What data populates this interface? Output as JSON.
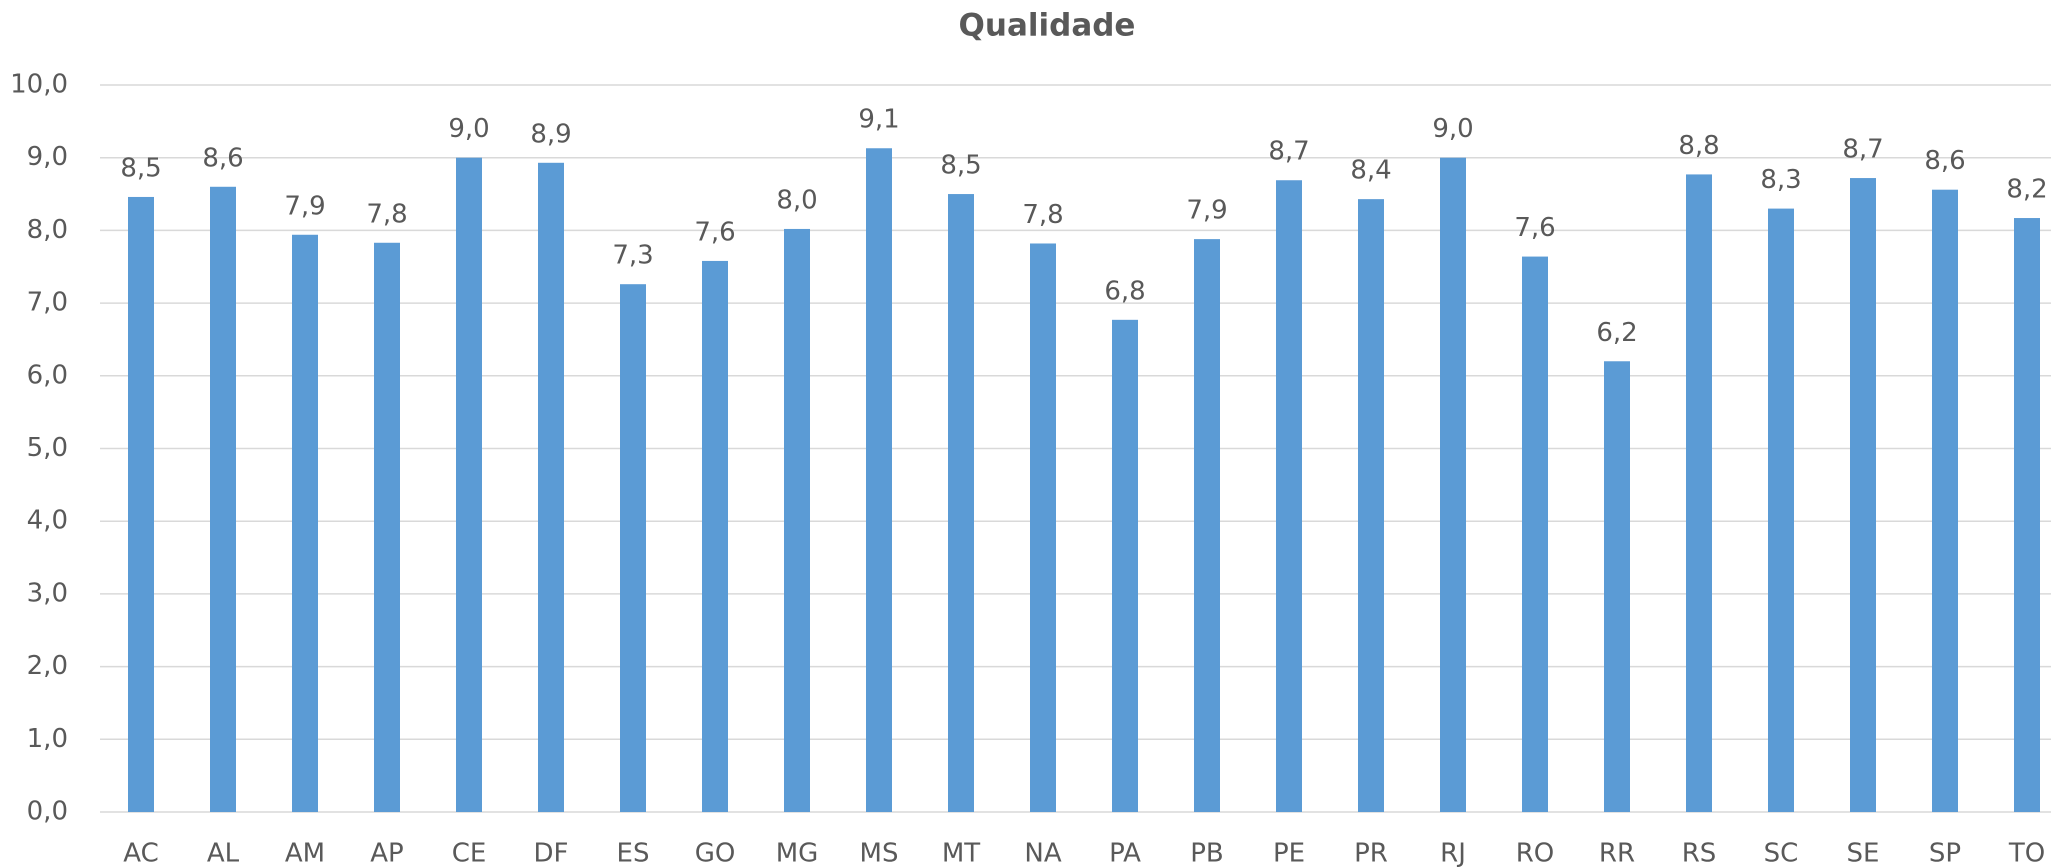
{
  "chart_data": {
    "type": "bar",
    "title": "Qualidade",
    "categories": [
      "AC",
      "AL",
      "AM",
      "AP",
      "CE",
      "DF",
      "ES",
      "GO",
      "MG",
      "MS",
      "MT",
      "NA",
      "PA",
      "PB",
      "PE",
      "PR",
      "RJ",
      "RO",
      "RR",
      "RS",
      "SC",
      "SE",
      "SP",
      "TO"
    ],
    "values": [
      8.46,
      8.6,
      7.94,
      7.83,
      9.0,
      8.93,
      7.26,
      7.58,
      8.02,
      9.13,
      8.5,
      7.82,
      6.77,
      7.88,
      8.69,
      8.43,
      9.0,
      7.64,
      6.2,
      8.77,
      8.3,
      8.72,
      8.56,
      8.17
    ],
    "value_labels": [
      "8,5",
      "8,6",
      "7,9",
      "7,8",
      "9,0",
      "8,9",
      "7,3",
      "7,6",
      "8,0",
      "9,1",
      "8,5",
      "7,8",
      "6,8",
      "7,9",
      "8,7",
      "8,4",
      "9,0",
      "7,6",
      "6,2",
      "8,8",
      "8,3",
      "8,7",
      "8,6",
      "8,2"
    ],
    "color": "#5b9bd5",
    "ylim": [
      0,
      10
    ],
    "yticks": [
      {
        "value": 0,
        "label": "0,0"
      },
      {
        "value": 1,
        "label": "1,0"
      },
      {
        "value": 2,
        "label": "2,0"
      },
      {
        "value": 3,
        "label": "3,0"
      },
      {
        "value": 4,
        "label": "4,0"
      },
      {
        "value": 5,
        "label": "5,0"
      },
      {
        "value": 6,
        "label": "6,0"
      },
      {
        "value": 7,
        "label": "7,0"
      },
      {
        "value": 8,
        "label": "8,0"
      },
      {
        "value": 9,
        "label": "9,0"
      },
      {
        "value": 10,
        "label": "10,0"
      }
    ],
    "grid": true
  }
}
